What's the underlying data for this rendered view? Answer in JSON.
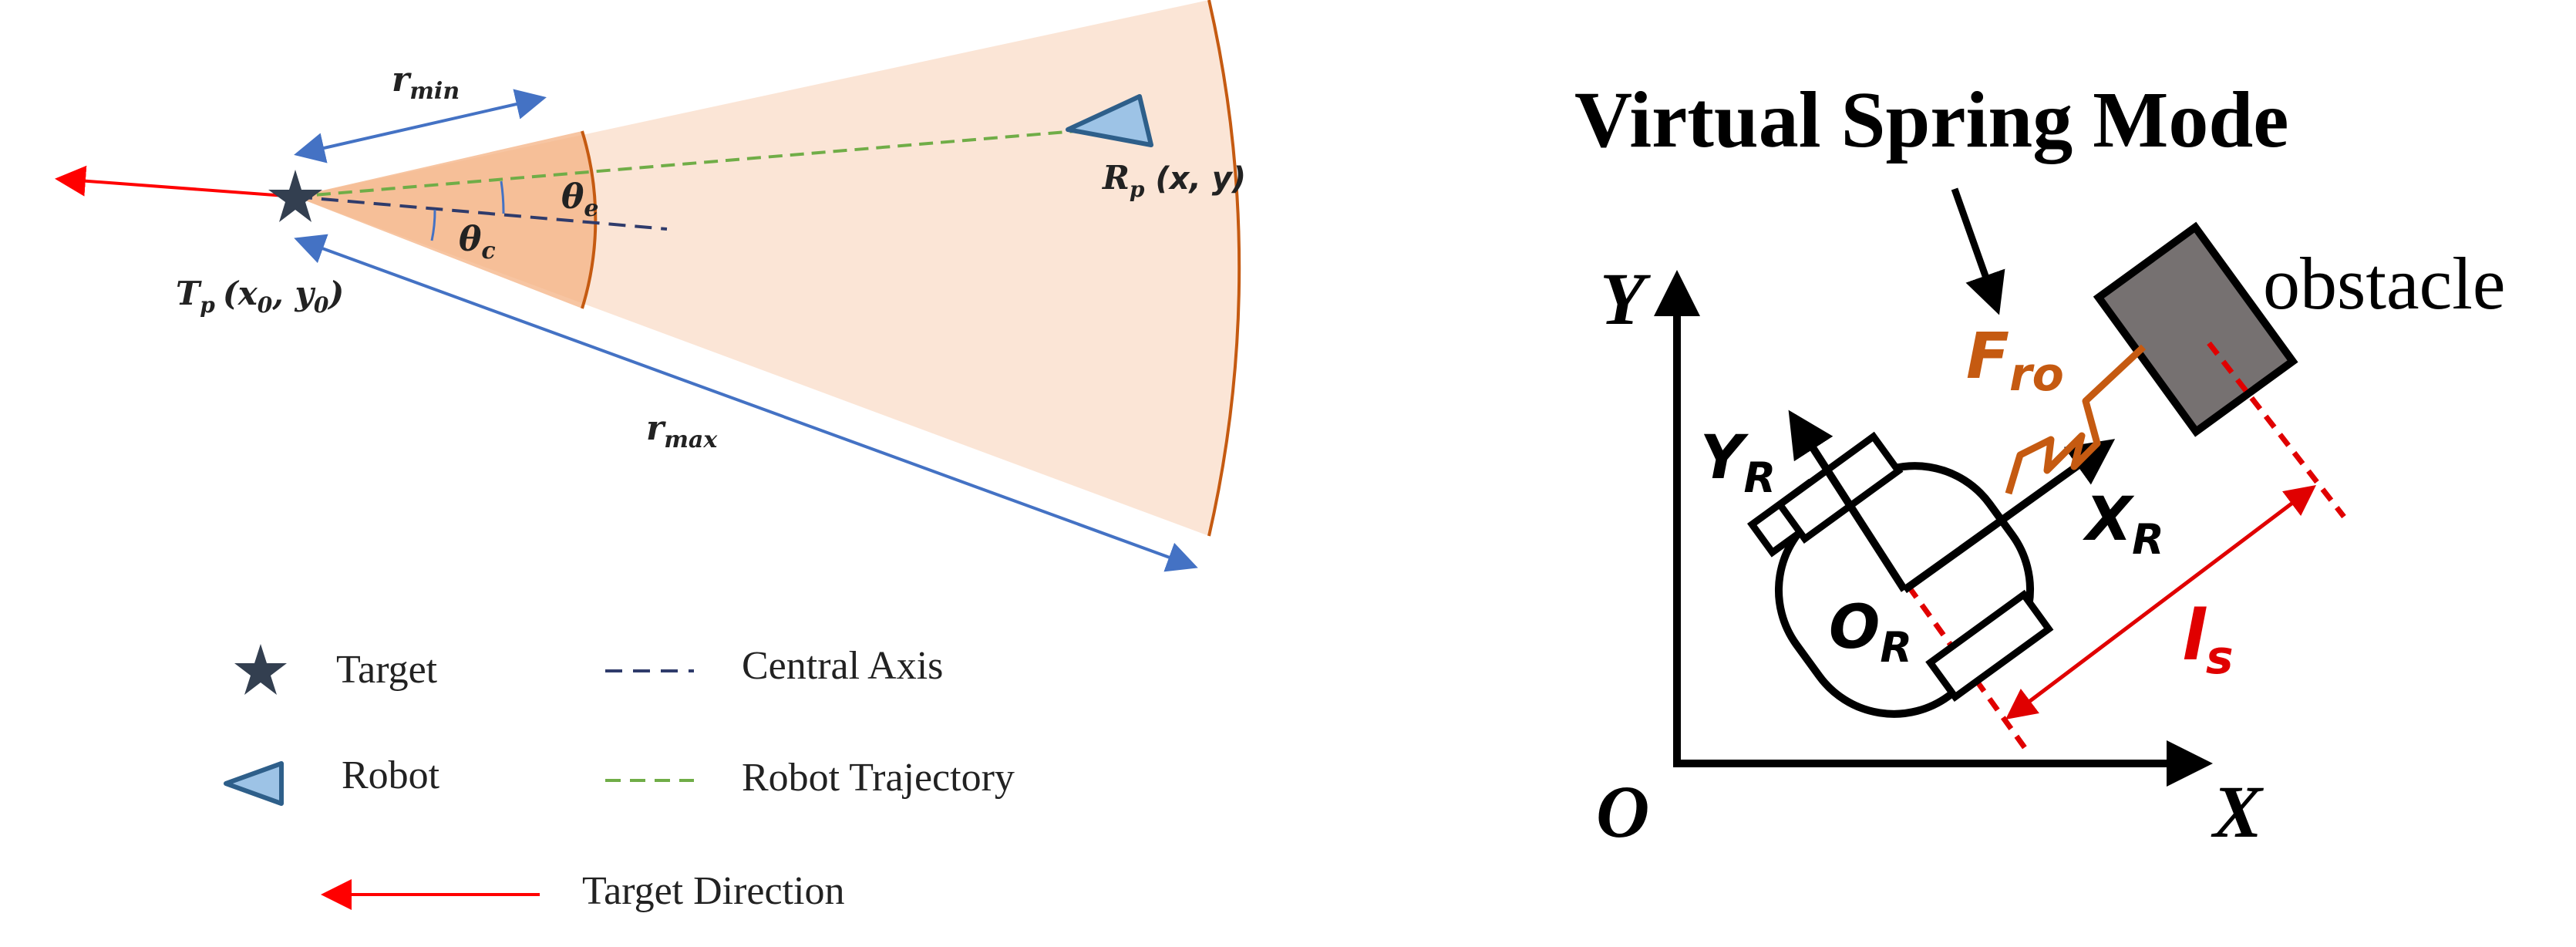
{
  "left": {
    "r_min": "r",
    "r_min_sub": "min",
    "r_max": "r",
    "r_max_sub": "max",
    "theta_e": "θ",
    "theta_e_sub": "e",
    "theta_c": "θ",
    "theta_c_sub": "c",
    "target_point": "T",
    "target_point_sub": "p",
    "target_coords": "(x",
    "target_coords_sub0": "0",
    "target_coords_mid": ", y",
    "target_coords_sub1": "0",
    "target_coords_end": ")",
    "robot_point": "R",
    "robot_point_sub": "p",
    "robot_coords": "(x, y)",
    "colors": {
      "sector_outer": "#fbe5d6",
      "sector_inner": "#f4b183",
      "sector_edge": "#c55a11",
      "arrow_blue": "#4472c4",
      "target_red": "#ff0000",
      "trajectory_green": "#70ad47",
      "central_axis": "#2f3b6b",
      "robot_fill": "#9dc3e6",
      "robot_stroke": "#2e5f8a",
      "star": "#333f50"
    }
  },
  "legend": {
    "target": "Target",
    "robot": "Robot",
    "central_axis": "Central Axis",
    "robot_trajectory": "Robot Trajectory",
    "target_direction": "Target Direction"
  },
  "right": {
    "title": "Virtual Spring Mode",
    "y_axis": "Y",
    "x_axis": "X",
    "origin": "O",
    "force_label": "F",
    "force_sub": "ro",
    "obstacle": "obstacle",
    "robot_y": "Y",
    "robot_y_sub": "R",
    "robot_x": "X",
    "robot_x_sub": "R",
    "robot_origin": "O",
    "robot_origin_sub": "R",
    "distance": "l",
    "distance_sub": "s",
    "colors": {
      "spring": "#c55a11",
      "distance_red": "#e00000",
      "obstacle_fill": "#767171"
    }
  }
}
